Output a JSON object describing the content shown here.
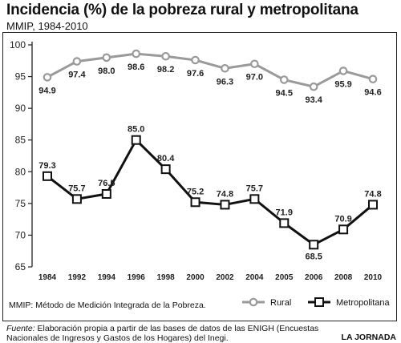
{
  "header": {
    "title": "Incidencia (%) de la pobreza rural y metropolitana",
    "subtitle": "MMIP, 1984-2010"
  },
  "notes": {
    "abbreviation": "MMIP: Método de Medición Integrada de la Pobreza."
  },
  "footer": {
    "source_label": "Fuente:",
    "source_text": " Elaboración propia a partir de las bases de datos de las ENIGH (Encuestas Nacionales de Ingresos y Gastos de los Hogares) del Inegi.",
    "brand": "LA JORNADA"
  },
  "chart_data": {
    "type": "line",
    "categories": [
      "1984",
      "1992",
      "1994",
      "1996",
      "1998",
      "2000",
      "2002",
      "2004",
      "2005",
      "2006",
      "2008",
      "2010"
    ],
    "series": [
      {
        "name": "Rural",
        "color": "#9a9a9a",
        "values": [
          94.9,
          97.4,
          98.0,
          98.6,
          98.2,
          97.6,
          96.3,
          97.0,
          94.5,
          93.4,
          95.9,
          94.6
        ],
        "labels": [
          "94.9",
          "97.4",
          "98.0",
          "98.6",
          "98.2",
          "97.6",
          "96.3",
          "97.0",
          "94.5",
          "93.4",
          "95.9",
          "94.6"
        ]
      },
      {
        "name": "Metropolitana",
        "color": "#111111",
        "values": [
          79.3,
          75.7,
          76.5,
          85.0,
          80.4,
          75.2,
          74.8,
          75.7,
          71.9,
          68.5,
          70.9,
          74.8
        ],
        "labels": [
          "79.3",
          "75.7",
          "76.5",
          "85.0",
          "80.4",
          "75.2",
          "74.8",
          "75.7",
          "71.9",
          "68.5",
          "70.9",
          "74.8"
        ]
      }
    ],
    "yticks": [
      "65",
      "70",
      "75",
      "80",
      "85",
      "90",
      "95",
      "100"
    ],
    "ylim": [
      65,
      100
    ],
    "grid": false,
    "legend_position": "bottom-right"
  }
}
